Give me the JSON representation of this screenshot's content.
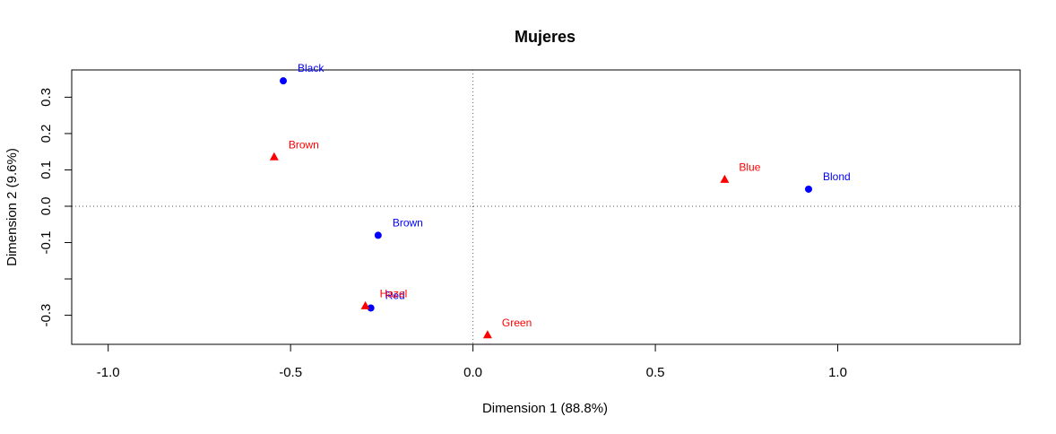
{
  "chart_data": {
    "type": "scatter",
    "title": "Mujeres",
    "xlabel": "Dimension 1 (88.8%)",
    "ylabel": "Dimension 2 (9.6%)",
    "xlim": [
      -1.1,
      1.5
    ],
    "ylim": [
      -0.38,
      0.375
    ],
    "x_ticks": [
      -1.0,
      -0.5,
      0.0,
      0.5,
      1.0
    ],
    "x_tick_labels": [
      "-1.0",
      "-0.5",
      "0.0",
      "0.5",
      "1.0"
    ],
    "y_ticks": [
      -0.3,
      -0.1,
      0.0,
      0.1,
      0.2,
      0.3
    ],
    "y_tick_labels": [
      "-0.3",
      "-0.1",
      "0.0",
      "0.1",
      "0.2",
      "0.3"
    ],
    "y_minor_ticks": [
      -0.2
    ],
    "reference_lines": {
      "x": 0,
      "y": 0,
      "style": "dotted"
    },
    "grid": false,
    "series": [
      {
        "color": "#0000ff",
        "marker": "circle",
        "points": [
          {
            "label": "Black",
            "x": -0.52,
            "y": 0.345
          },
          {
            "label": "Brown",
            "x": -0.26,
            "y": -0.08
          },
          {
            "label": "Red",
            "x": -0.28,
            "y": -0.28
          },
          {
            "label": "Blond",
            "x": 0.92,
            "y": 0.047
          }
        ]
      },
      {
        "color": "#ff0000",
        "marker": "triangle",
        "points": [
          {
            "label": "Brown",
            "x": -0.545,
            "y": 0.135
          },
          {
            "label": "Hazel",
            "x": -0.295,
            "y": -0.275
          },
          {
            "label": "Green",
            "x": 0.04,
            "y": -0.355
          },
          {
            "label": "Blue",
            "x": 0.69,
            "y": 0.073
          }
        ]
      }
    ]
  }
}
